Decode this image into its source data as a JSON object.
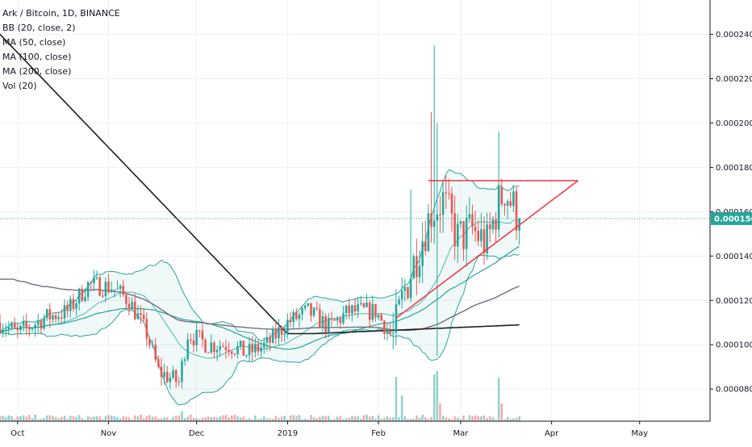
{
  "header": {
    "symbol_line": "Ark / Bitcoin, 1D, BINANCE",
    "indicators": [
      "BB (20, close, 2)",
      "MA (50, close)",
      "MA (100, close)",
      "MA (200, close)",
      "Vol (20)"
    ]
  },
  "price_label": "0.0001569",
  "colors": {
    "up": "#26a69a",
    "down": "#ef5350",
    "bb": "#26a69a",
    "ma50": "#26a69a",
    "ma100": "#7a6a7e",
    "ma200": "#1d1d1d",
    "triangle": "#f23645",
    "price_line": "#26a69a"
  },
  "chart_data": {
    "type": "candlestick",
    "x_labels": [
      "Oct",
      "Nov",
      "Dec",
      "2019",
      "Feb",
      "Mar",
      "Apr",
      "May"
    ],
    "y_ticks": [
      "0.0000800",
      "0.0001000",
      "0.0001200",
      "0.0001400",
      "0.0001600",
      "0.0001800",
      "0.0002000",
      "0.0002200",
      "0.0002400"
    ],
    "ylim": [
      6.55e-05,
      0.0002555
    ],
    "last_price": 0.0001569,
    "anchors": [
      [
        "2018-09-25",
        0.00011
      ],
      [
        "2018-10-01",
        0.000105
      ],
      [
        "2018-10-10",
        0.000112
      ],
      [
        "2018-10-18",
        0.000115
      ],
      [
        "2018-10-25",
        0.000127
      ],
      [
        "2018-11-02",
        0.000126
      ],
      [
        "2018-11-08",
        0.00012
      ],
      [
        "2018-11-14",
        0.000105
      ],
      [
        "2018-11-18",
        8.8e-05
      ],
      [
        "2018-11-25",
        8.3e-05
      ],
      [
        "2018-11-28",
        0.000105
      ],
      [
        "2018-12-05",
        0.0001
      ],
      [
        "2018-12-12",
        0.0001
      ],
      [
        "2018-12-18",
        9.6e-05
      ],
      [
        "2018-12-25",
        0.0001
      ],
      [
        "2019-01-01",
        0.00011
      ],
      [
        "2019-01-08",
        0.000115
      ],
      [
        "2019-01-15",
        0.000108
      ],
      [
        "2019-01-22",
        0.000115
      ],
      [
        "2019-01-31",
        0.000115
      ],
      [
        "2019-02-06",
        0.000103
      ],
      [
        "2019-02-10",
        0.000125
      ],
      [
        "2019-02-15",
        0.000145
      ],
      [
        "2019-02-19",
        0.00016
      ],
      [
        "2019-02-23",
        0.000165
      ],
      [
        "2019-02-28",
        0.000148
      ],
      [
        "2019-03-05",
        0.000152
      ],
      [
        "2019-03-10",
        0.000145
      ],
      [
        "2019-03-13",
        0.00016
      ],
      [
        "2019-03-16",
        0.00017
      ],
      [
        "2019-03-19",
        0.000162
      ],
      [
        "2019-03-21",
        0.0001569
      ]
    ],
    "spikes": [
      {
        "date": "2019-02-20",
        "high": 0.000235
      },
      {
        "date": "2019-02-19",
        "high": 0.000205
      },
      {
        "date": "2019-02-21",
        "high": 0.0002
      },
      {
        "date": "2019-03-14",
        "high": 0.000196
      },
      {
        "date": "2019-02-12",
        "high": 0.00017
      },
      {
        "date": "2019-02-21",
        "low": 9.5e-05
      }
    ],
    "triangle": [
      [
        "2019-02-18",
        0.000174
      ],
      [
        "2019-04-10",
        0.000174
      ],
      [
        "2019-02-07",
        0.000112
      ],
      [
        "2019-04-10",
        0.000174
      ]
    ],
    "volume_spikes": [
      {
        "date": "2019-02-07",
        "value": 55
      },
      {
        "date": "2019-02-09",
        "value": 32
      },
      {
        "date": "2019-02-20",
        "value": 58
      },
      {
        "date": "2019-02-21",
        "value": 62
      },
      {
        "date": "2019-02-22",
        "value": 22
      },
      {
        "date": "2019-03-14",
        "value": 54
      },
      {
        "date": "2019-03-15",
        "value": 22
      },
      {
        "date": "2018-11-26",
        "value": 12
      },
      {
        "date": "2018-11-29",
        "value": 8
      }
    ],
    "x_range": [
      "2018-09-25",
      "2019-05-25"
    ]
  }
}
